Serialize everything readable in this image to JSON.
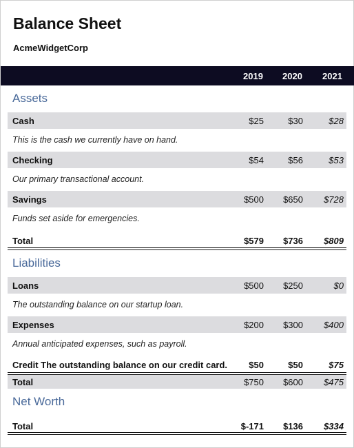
{
  "document": {
    "title": "Balance Sheet",
    "company": "AcmeWidgetCorp"
  },
  "columns": [
    "2019",
    "2020",
    "2021"
  ],
  "assets": {
    "heading": "Assets",
    "items": [
      {
        "label": "Cash",
        "values": [
          "$25",
          "$30",
          "$28"
        ],
        "description": "This is the cash we currently have on hand."
      },
      {
        "label": "Checking",
        "values": [
          "$54",
          "$56",
          "$53"
        ],
        "description": "Our primary transactional account."
      },
      {
        "label": "Savings",
        "values": [
          "$500",
          "$650",
          "$728"
        ],
        "description": "Funds set aside for emergencies."
      }
    ],
    "total": {
      "label": "Total",
      "values": [
        "$579",
        "$736",
        "$809"
      ]
    }
  },
  "liabilities": {
    "heading": "Liabilities",
    "items": [
      {
        "label": "Loans",
        "values": [
          "$500",
          "$250",
          "$0"
        ],
        "description": "The outstanding balance on our startup loan."
      },
      {
        "label": "Expenses",
        "values": [
          "$200",
          "$300",
          "$400"
        ],
        "description": "Annual anticipated expenses, such as payroll."
      }
    ],
    "credit": {
      "label": "Credit The outstanding balance on our credit card.",
      "values": [
        "$50",
        "$50",
        "$75"
      ]
    },
    "total": {
      "label": "Total",
      "values": [
        "$750",
        "$600",
        "$475"
      ]
    }
  },
  "net_worth": {
    "heading": "Net Worth",
    "total": {
      "label": "Total",
      "values": [
        "$-171",
        "$136",
        "$334"
      ]
    }
  }
}
